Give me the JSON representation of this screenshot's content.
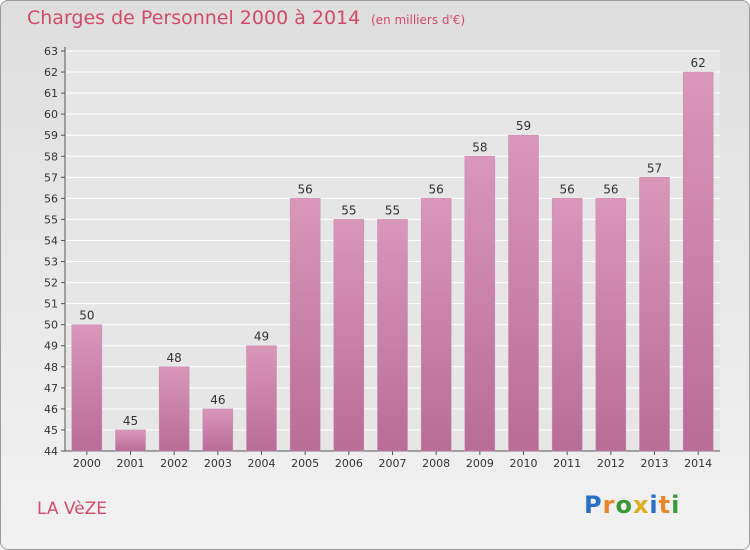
{
  "chart_data": {
    "type": "bar",
    "title": "Charges de Personnel 2000 à 2014",
    "subtitle": "(en milliers d'€)",
    "categories": [
      "2000",
      "2001",
      "2002",
      "2003",
      "2004",
      "2005",
      "2006",
      "2007",
      "2008",
      "2009",
      "2010",
      "2011",
      "2012",
      "2013",
      "2014"
    ],
    "values": [
      50,
      45,
      48,
      46,
      49,
      56,
      55,
      55,
      56,
      58,
      59,
      56,
      56,
      57,
      62
    ],
    "ylim": [
      44,
      63
    ],
    "yticks": [
      44,
      45,
      46,
      47,
      48,
      49,
      50,
      51,
      52,
      53,
      54,
      55,
      56,
      57,
      58,
      59,
      60,
      61,
      62,
      63
    ],
    "grid": true,
    "bar_color": "#d997b9",
    "bar_color_dark": "#b86c96"
  },
  "commune": "LA VèZE",
  "logo": {
    "letters": [
      "P",
      "r",
      "o",
      "x",
      "i",
      "t",
      "i"
    ],
    "colors": [
      "#2a6fc4",
      "#e8862a",
      "#3a9a3a",
      "#d8b020",
      "#2a6fc4",
      "#e8862a",
      "#3a9a3a"
    ]
  },
  "colors": {
    "accent": "#d24a6a"
  }
}
